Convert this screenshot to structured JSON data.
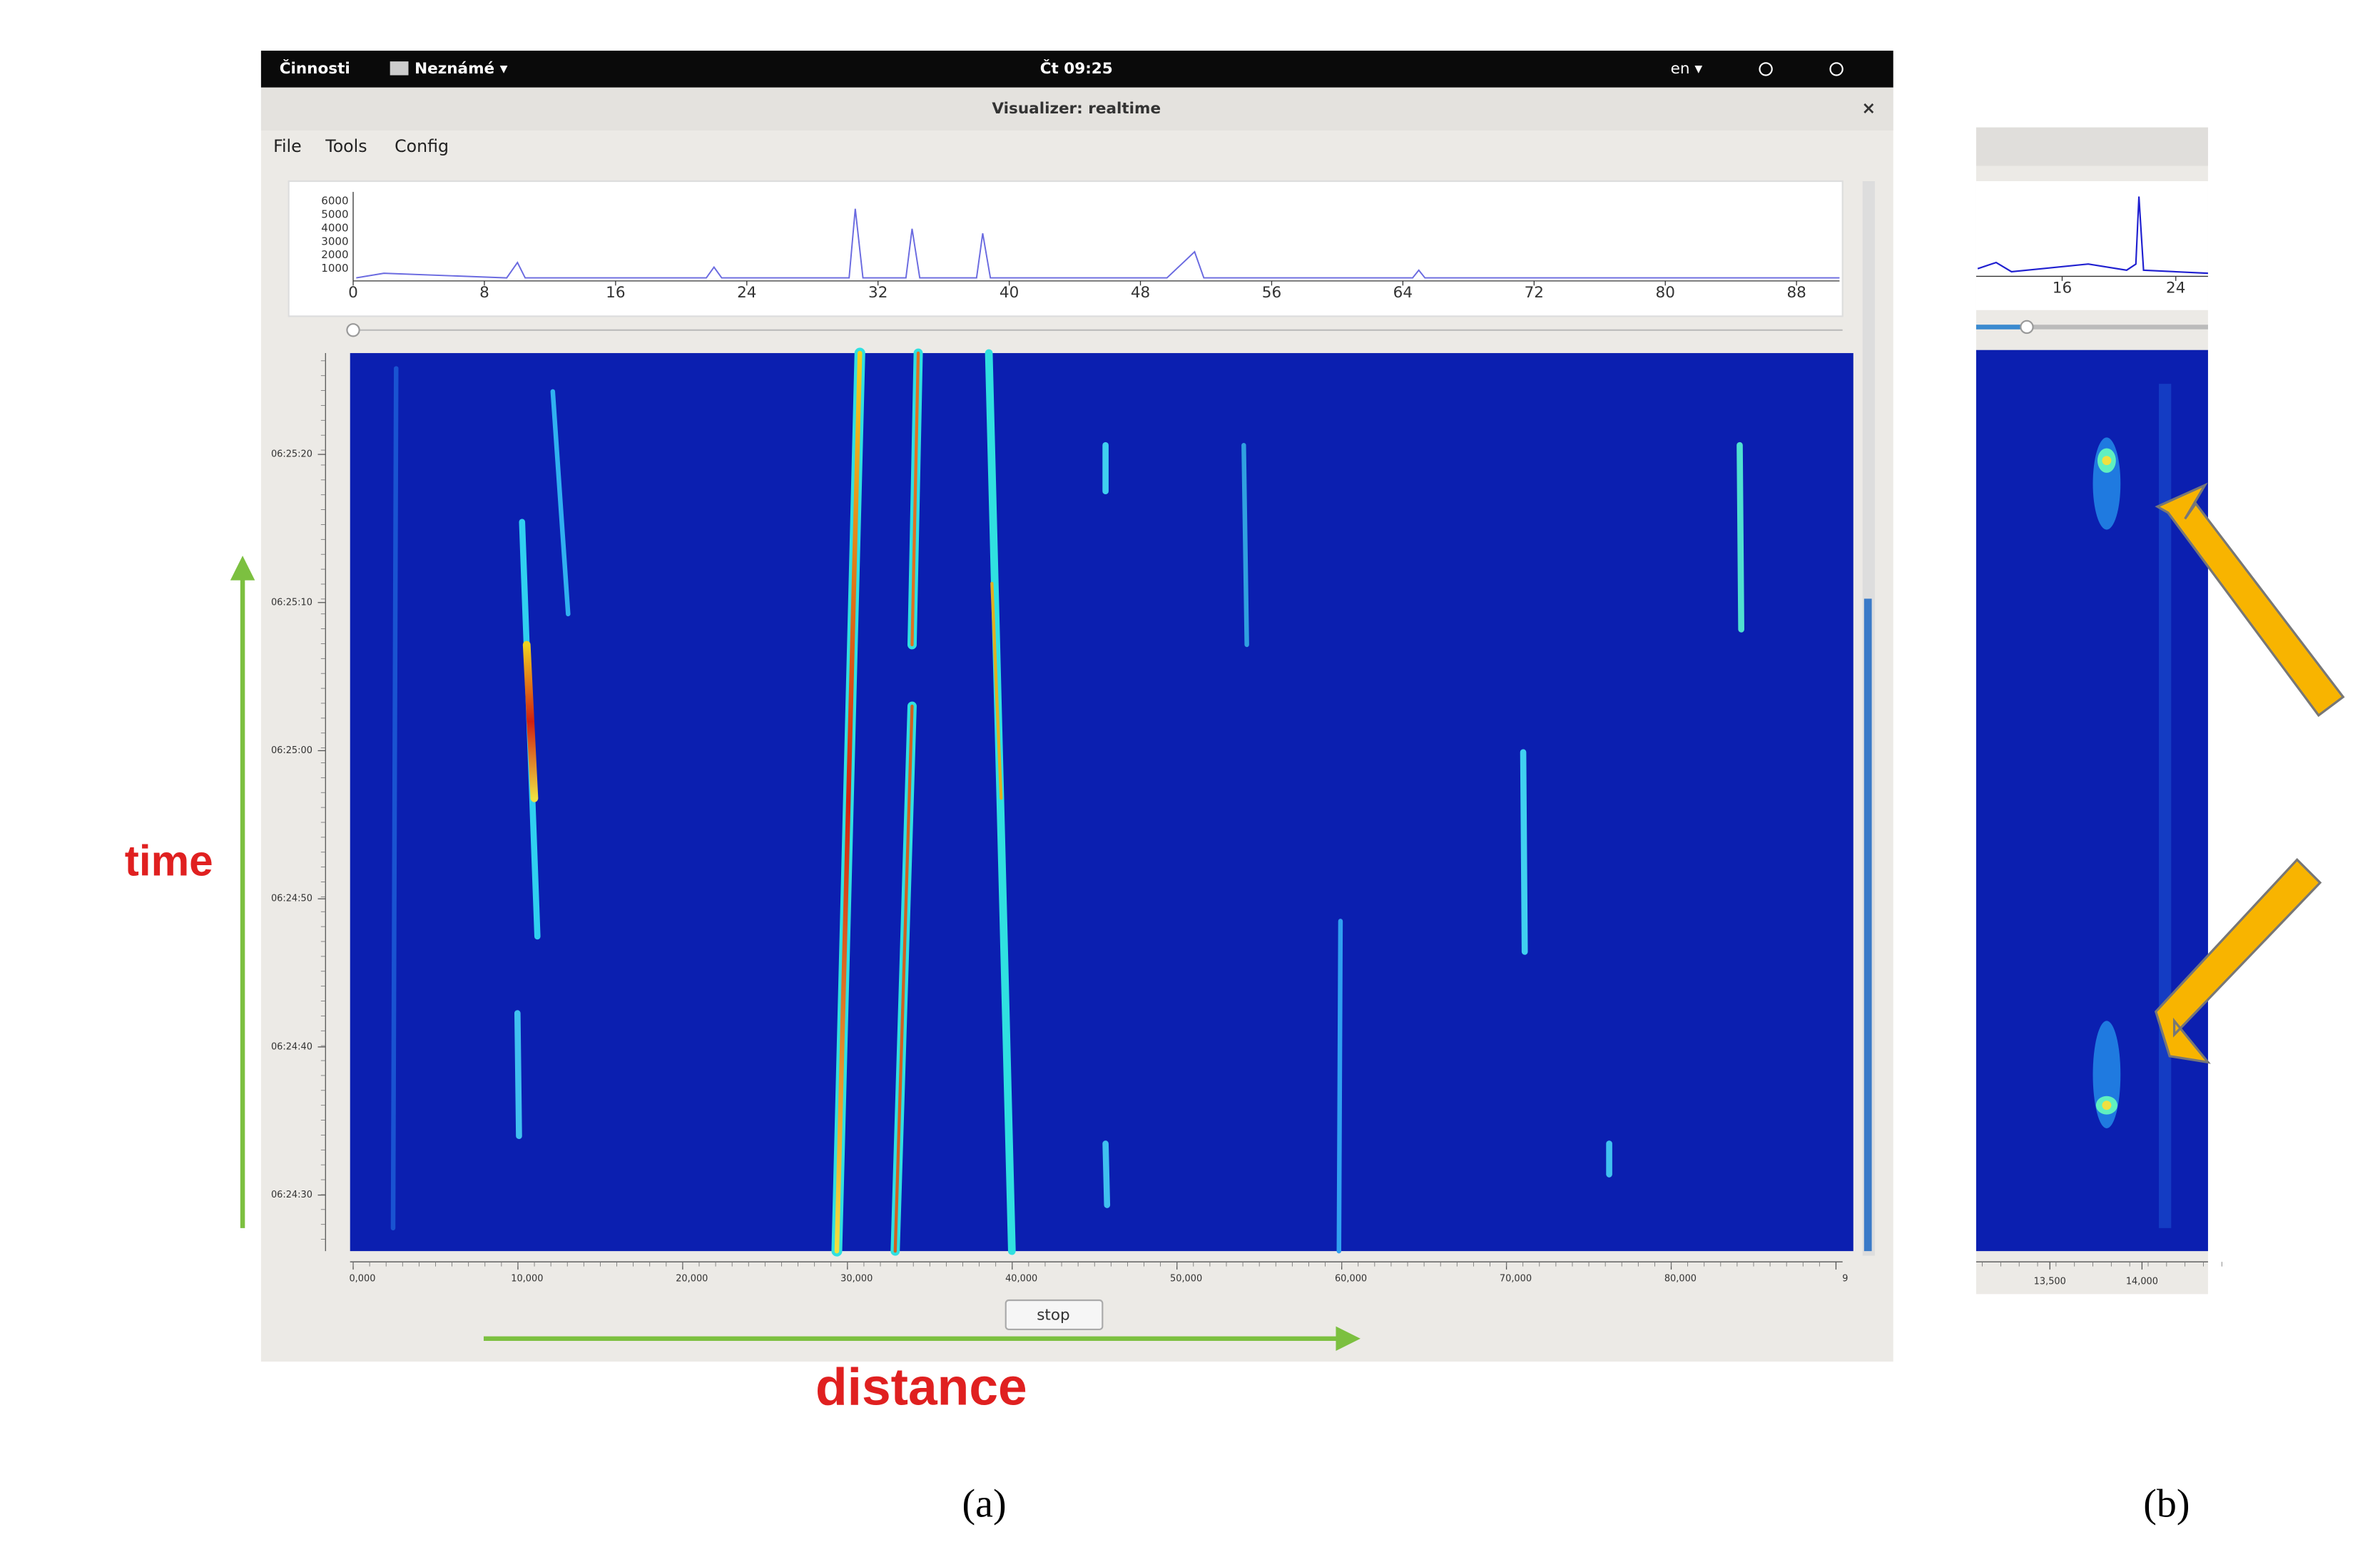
{
  "top_bar": {
    "activities": "Činnosti",
    "app_menu": "Neznámé ▾",
    "clock": "Čt 09:25",
    "language": "en ▾"
  },
  "window": {
    "title": "Visualizer: realtime",
    "close": "×"
  },
  "menu": [
    "File",
    "Tools",
    "Config"
  ],
  "panel_a": {
    "spectrum": {
      "yticks": [
        6000,
        5000,
        4000,
        3000,
        2000,
        1000
      ],
      "xticks": [
        0,
        8,
        16,
        24,
        32,
        40,
        48,
        56,
        64,
        72,
        80,
        88
      ]
    },
    "time_labels": [
      "06:25:20",
      "06:25:10",
      "06:25:00",
      "06:24:50",
      "06:24:40",
      "06:24:30"
    ],
    "distance_labels": [
      "0,000",
      "10,000",
      "20,000",
      "30,000",
      "40,000",
      "50,000",
      "60,000",
      "70,000",
      "80,000",
      "9"
    ],
    "button": "stop",
    "time_annotation": "time",
    "distance_annotation": "distance",
    "caption": "(a)"
  },
  "panel_b": {
    "spectrum_xticks": [
      16,
      24
    ],
    "distance_labels": [
      "13,500",
      "14,000"
    ],
    "caption": "(b)"
  }
}
